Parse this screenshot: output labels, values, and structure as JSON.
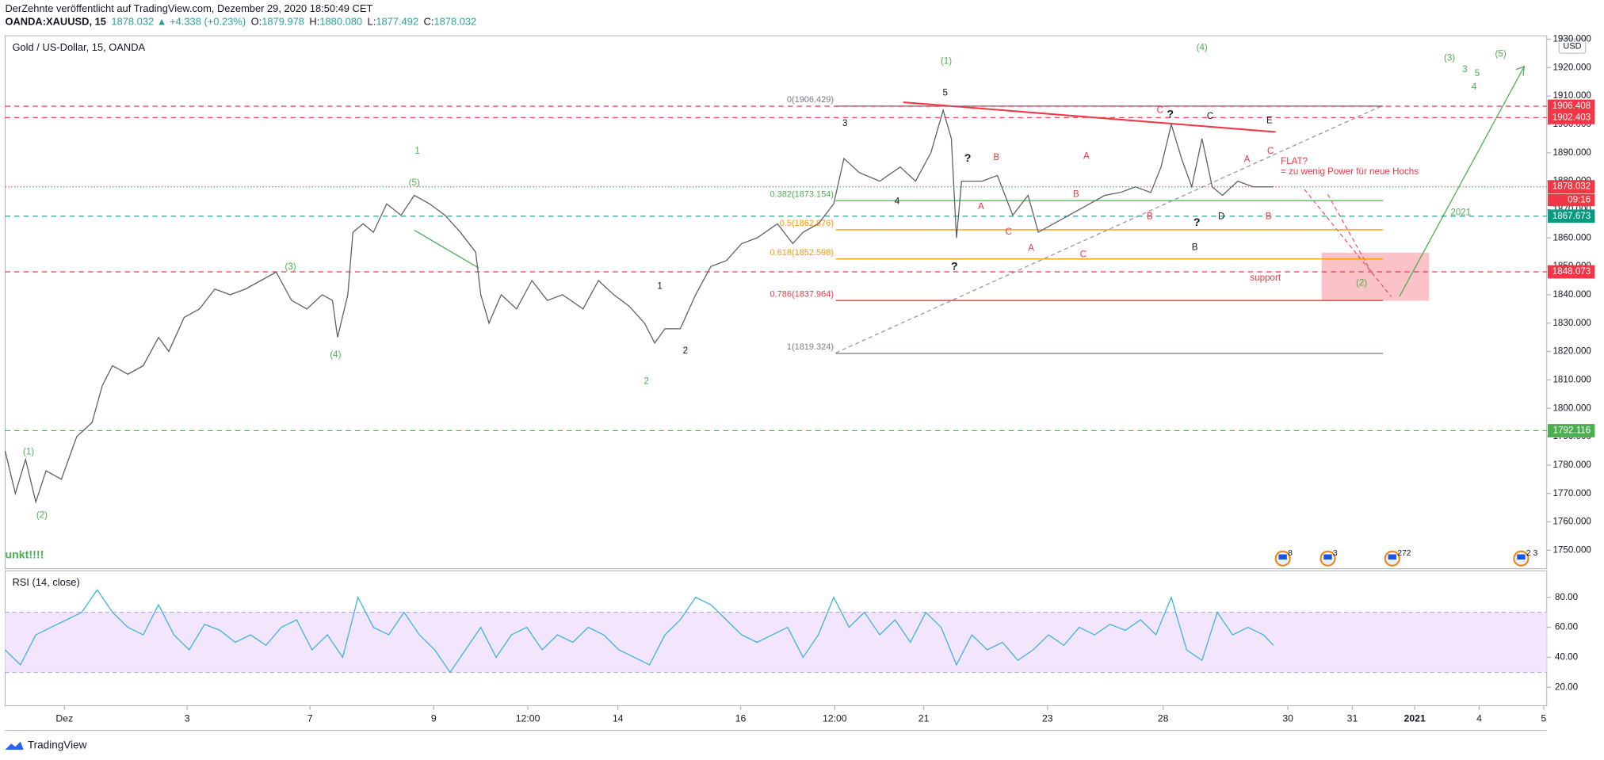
{
  "header": {
    "publisher": "DerZehnte veröffentlicht auf TradingView.com, Dezember 29, 2020 18:50:49 CET",
    "symbol": "OANDA:XAUUSD, 15",
    "quote": [
      {
        "text": "1878.032 ▲ +4.338 (+0.23%)",
        "color": "#26a69a"
      },
      {
        "text": "O:",
        "color": "#131722"
      },
      {
        "text": "1879.978",
        "color": "#26a69a"
      },
      {
        "text": "H:",
        "color": "#131722"
      },
      {
        "text": "1880.080",
        "color": "#26a69a"
      },
      {
        "text": "L:",
        "color": "#131722"
      },
      {
        "text": "1877.492",
        "color": "#26a69a"
      },
      {
        "text": "C:",
        "color": "#131722"
      },
      {
        "text": "1878.032",
        "color": "#26a69a"
      }
    ],
    "logo": "TradingView"
  },
  "chart_data": [
    {
      "type": "line",
      "title": "Gold  / US-Dollar, 15, OANDA",
      "currency": "USD",
      "countdown": "09:16",
      "color": "#5d606b",
      "x": [
        5,
        15,
        25,
        35,
        45,
        60,
        75,
        90,
        100,
        110,
        125,
        140,
        155,
        165,
        180,
        195,
        210,
        225,
        240,
        255,
        270,
        285,
        300,
        315,
        325,
        330,
        340,
        345,
        355,
        365,
        378,
        392,
        405,
        420,
        435,
        450,
        465,
        470,
        478,
        490,
        505,
        520,
        535,
        550,
        570,
        585,
        600,
        615,
        630,
        640,
        650,
        665,
        680,
        695,
        710,
        725,
        740,
        760,
        775,
        785,
        800,
        815,
        825,
        840,
        860,
        880,
        895,
        910,
        922,
        930,
        935,
        940,
        960,
        975,
        990,
        1005,
        1015,
        1030,
        1045,
        1055,
        1065,
        1080,
        1095,
        1110,
        1125,
        1135,
        1145,
        1155,
        1165,
        1175,
        1185,
        1195,
        1210,
        1225,
        1245
      ],
      "values": [
        1785,
        1770,
        1782,
        1767,
        1778,
        1775,
        1790,
        1795,
        1808,
        1815,
        1812,
        1815,
        1825,
        1820,
        1832,
        1835,
        1842,
        1840,
        1842,
        1845,
        1848,
        1838,
        1835,
        1840,
        1838,
        1825,
        1840,
        1862,
        1865,
        1862,
        1872,
        1868,
        1875,
        1872,
        1868,
        1862,
        1855,
        1840,
        1830,
        1840,
        1835,
        1845,
        1838,
        1840,
        1835,
        1845,
        1840,
        1836,
        1830,
        1823,
        1828,
        1828,
        1840,
        1850,
        1852,
        1858,
        1860,
        1865,
        1858,
        1862,
        1865,
        1872,
        1888,
        1883,
        1880,
        1885,
        1880,
        1890,
        1905,
        1895,
        1860,
        1880,
        1880,
        1882,
        1868,
        1875,
        1862,
        1865,
        1868,
        1870,
        1872,
        1875,
        1876,
        1878,
        1876,
        1885,
        1900,
        1888,
        1878,
        1895,
        1878,
        1875,
        1880,
        1878,
        1878
      ],
      "xlim": [
        5,
        1512
      ],
      "xticks": [
        {
          "value": 63,
          "label": "Dez"
        },
        {
          "value": 183,
          "label": "3"
        },
        {
          "value": 303,
          "label": "7"
        },
        {
          "value": 424,
          "label": "9"
        },
        {
          "value": 516,
          "label": "12:00"
        },
        {
          "value": 604,
          "label": "14"
        },
        {
          "value": 724,
          "label": "16"
        },
        {
          "value": 816,
          "label": "12:00"
        },
        {
          "value": 903,
          "label": "21"
        },
        {
          "value": 1024,
          "label": "23"
        },
        {
          "value": 1137,
          "label": "28"
        },
        {
          "value": 1259,
          "label": "30"
        },
        {
          "value": 1322,
          "label": "31"
        },
        {
          "value": 1383,
          "label": "2021"
        },
        {
          "value": 1446,
          "label": "4"
        },
        {
          "value": 1509,
          "label": "5"
        }
      ],
      "ylim": [
        1743.5,
        1931.2
      ],
      "yticks": [
        {
          "value": 1750,
          "label": "1750.000"
        },
        {
          "value": 1760,
          "label": "1760.000"
        },
        {
          "value": 1770,
          "label": "1770.000"
        },
        {
          "value": 1780,
          "label": "1780.000"
        },
        {
          "value": 1790,
          "label": "1790.000"
        },
        {
          "value": 1800,
          "label": "1800.000"
        },
        {
          "value": 1810,
          "label": "1810.000"
        },
        {
          "value": 1820,
          "label": "1820.000"
        },
        {
          "value": 1830,
          "label": "1830.000"
        },
        {
          "value": 1840,
          "label": "1840.000"
        },
        {
          "value": 1850,
          "label": "1850.000"
        },
        {
          "value": 1860,
          "label": "1860.000"
        },
        {
          "value": 1870,
          "label": "1870.000"
        },
        {
          "value": 1880,
          "label": "1880.000"
        },
        {
          "value": 1890,
          "label": "1890.000"
        },
        {
          "value": 1900,
          "label": "1900.000"
        },
        {
          "value": 1910,
          "label": "1910.000"
        },
        {
          "value": 1920,
          "label": "1920.000"
        },
        {
          "value": 1930,
          "label": "1930.000"
        }
      ],
      "price_lines": [
        {
          "value": 1906.408,
          "color": "#f23645",
          "style": "dashed"
        },
        {
          "value": 1902.403,
          "color": "#f23645",
          "style": "dashed"
        },
        {
          "value": 1878.032,
          "color": "#f23645",
          "style": "dotted"
        },
        {
          "value": 1867.673,
          "color": "#089981",
          "style": "dashed"
        },
        {
          "value": 1848.073,
          "color": "#f23645",
          "style": "dashed"
        },
        {
          "value": 1792.116,
          "color": "#4caf50",
          "style": "dashed"
        }
      ],
      "fib_levels": [
        {
          "label": "0(1906.429)",
          "value": 1906.429,
          "color": "#787b86"
        },
        {
          "label": "0.382(1873.154)",
          "value": 1873.154,
          "color": "#4caf50"
        },
        {
          "label": "0.5(1862.876)",
          "value": 1862.876,
          "color": "#ff9800"
        },
        {
          "label": "0.618(1852.598)",
          "value": 1852.598,
          "color": "#ff9800"
        },
        {
          "label": "0.786(1837.964)",
          "value": 1837.964,
          "color": "#f23645"
        },
        {
          "label": "1(1819.324)",
          "value": 1819.324,
          "color": "#787b86"
        }
      ],
      "annotations": [
        "(1)",
        "(4)",
        "(3)",
        "3",
        "5",
        "4",
        "(5)",
        "1",
        "(5)",
        "(3)",
        "(4)",
        "2",
        "(1)",
        "(2)",
        "(2)",
        "2021",
        "5",
        "3",
        "4",
        "1",
        "2",
        "?",
        "?",
        "?",
        "C",
        "E",
        "?",
        "D",
        "B",
        "C",
        "B",
        "A",
        "A",
        "B",
        "C",
        "A",
        "C",
        "B",
        "A",
        "C",
        "B",
        "FLAT?",
        "= zu wenig Power für neue Hochs",
        "support",
        "unkt!!!!"
      ],
      "events": [
        "8",
        "3",
        "272",
        "2 3"
      ]
    },
    {
      "type": "line",
      "title": "RSI (14, close)",
      "color": "#3bb3e4",
      "band": [
        30,
        70
      ],
      "band_color": "#f3e5fb",
      "x": [
        5,
        20,
        35,
        50,
        65,
        80,
        95,
        110,
        125,
        140,
        155,
        170,
        185,
        200,
        215,
        230,
        245,
        260,
        275,
        290,
        305,
        320,
        335,
        350,
        365,
        380,
        395,
        410,
        425,
        440,
        455,
        470,
        485,
        500,
        515,
        530,
        545,
        560,
        575,
        590,
        605,
        620,
        635,
        650,
        665,
        680,
        695,
        710,
        725,
        740,
        755,
        770,
        785,
        800,
        815,
        830,
        845,
        860,
        875,
        890,
        905,
        920,
        935,
        950,
        965,
        980,
        995,
        1010,
        1025,
        1040,
        1055,
        1070,
        1085,
        1100,
        1115,
        1130,
        1145,
        1160,
        1175,
        1190,
        1205,
        1220,
        1235,
        1245
      ],
      "values": [
        45,
        35,
        55,
        60,
        65,
        70,
        85,
        70,
        60,
        55,
        75,
        55,
        45,
        62,
        58,
        50,
        55,
        48,
        60,
        65,
        45,
        55,
        40,
        80,
        60,
        55,
        70,
        55,
        45,
        30,
        45,
        60,
        40,
        55,
        60,
        45,
        55,
        50,
        60,
        55,
        45,
        40,
        35,
        55,
        65,
        80,
        75,
        65,
        55,
        50,
        55,
        60,
        40,
        55,
        80,
        60,
        70,
        55,
        65,
        50,
        70,
        60,
        35,
        55,
        45,
        50,
        38,
        45,
        55,
        48,
        60,
        55,
        62,
        58,
        65,
        55,
        80,
        45,
        38,
        70,
        55,
        60,
        55,
        48
      ],
      "xlim": [
        5,
        1512
      ],
      "ylim": [
        7.7,
        97.7
      ],
      "yticks": [
        {
          "value": 20,
          "label": "20.00"
        },
        {
          "value": 40,
          "label": "40.00"
        },
        {
          "value": 60,
          "label": "60.00"
        },
        {
          "value": 80,
          "label": "80.00"
        }
      ]
    }
  ]
}
